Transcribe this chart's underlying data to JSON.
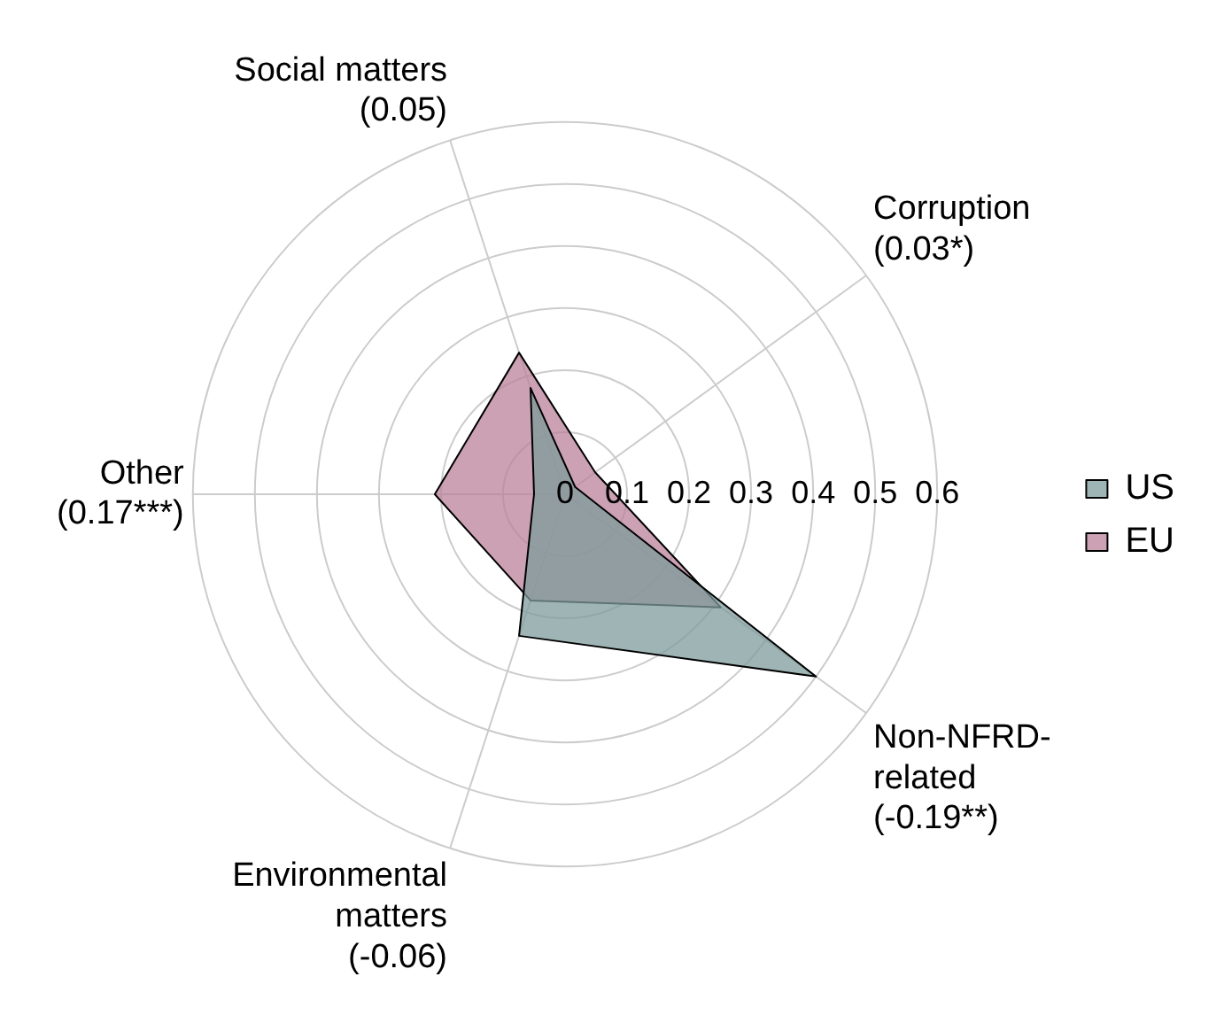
{
  "chart_data": {
    "type": "radar",
    "categories": [
      "Social matters\n(0.05)",
      "Corruption\n(0.03*)",
      "Non-NFRD-\nrelated\n(-0.19**)",
      "Environmental\nmatters\n(-0.06)",
      "Other\n(0.17***)"
    ],
    "series": [
      {
        "name": "US",
        "color": "#7f9c9c",
        "values": [
          0.18,
          0.02,
          0.5,
          0.24,
          0.05
        ]
      },
      {
        "name": "EU",
        "color": "#b9819a",
        "values": [
          0.24,
          0.06,
          0.31,
          0.18,
          0.21
        ]
      }
    ],
    "ylim": [
      0,
      0.6
    ],
    "yticks": [
      0,
      0.1,
      0.2,
      0.3,
      0.4,
      0.5,
      0.6
    ],
    "grid": true,
    "legend": "right",
    "marker": "none"
  }
}
